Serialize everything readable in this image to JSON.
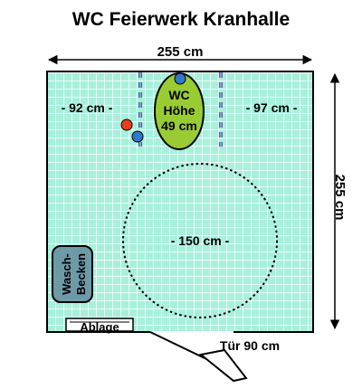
{
  "title": "WC Feierwerk Kranhalle",
  "width_label": "255 cm",
  "depth_label": "255 cm",
  "left_clearance": "- 92 cm -",
  "right_clearance": "- 97 cm -",
  "wc": {
    "line1": "WC",
    "line2": "Höhe",
    "line3": "49 cm"
  },
  "turning_circle": "- 150 cm -",
  "sink": {
    "line1": "Wasch-",
    "line2": "Becken"
  },
  "shelf": "Ablage",
  "door": "Tür 90 cm",
  "colors": {
    "floor": "#a8f0dc",
    "tile_line": "#ffffff",
    "wc": "#99cc33",
    "sink": "#6e9aa8",
    "dot_blue": "#3377cc",
    "dot_red": "#e8401c",
    "grab_bar": "#1b3a8a"
  }
}
